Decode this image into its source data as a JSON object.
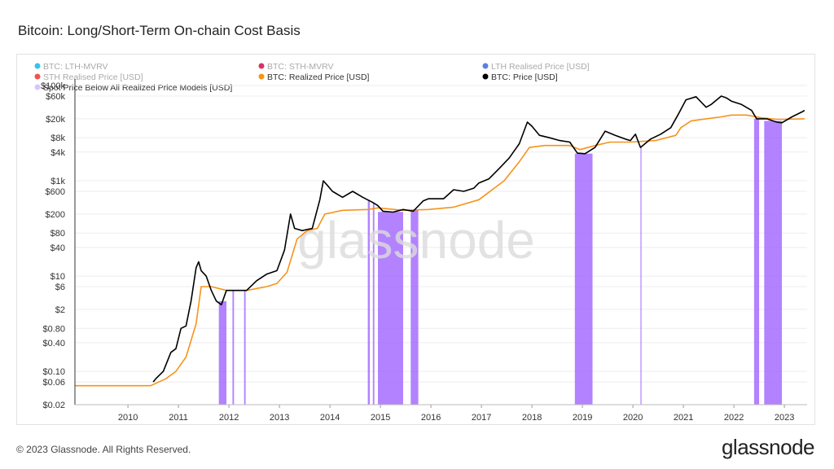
{
  "page": {
    "title": "Bitcoin: Long/Short-Term On-chain Cost Basis"
  },
  "footer": {
    "copyright": "© 2023 Glassnode. All Rights Reserved.",
    "logo": "glassnode"
  },
  "watermark": "glassnode",
  "colors": {
    "price": "#000000",
    "realized": "#f7931a",
    "band": "#a66cff",
    "lth_mvrv": "#33c3f0",
    "sth_mvrv": "#d6336c",
    "lth_realised": "#5b7fe0",
    "sth_realised": "#ef5350"
  },
  "chart_data": {
    "type": "line",
    "title": "Bitcoin: Long/Short-Term On-chain Cost Basis",
    "y_scale": "log",
    "ylim": [
      0.02,
      100000
    ],
    "xlim": [
      "2009-01",
      "2023-06"
    ],
    "y_ticks": [
      "$0.02",
      "$0.06",
      "$0.10",
      "$0.40",
      "$0.80",
      "$2",
      "$6",
      "$10",
      "$40",
      "$80",
      "$200",
      "$600",
      "$1k",
      "$4k",
      "$8k",
      "$20k",
      "$60k",
      "$100k"
    ],
    "x_ticks": [
      "2010",
      "2011",
      "2012",
      "2013",
      "2014",
      "2015",
      "2016",
      "2017",
      "2018",
      "2019",
      "2020",
      "2021",
      "2022",
      "2023"
    ],
    "legend": [
      {
        "label": "BTC: LTH-MVRV",
        "color": "#33c3f0",
        "dimmed": true
      },
      {
        "label": "BTC: STH-MVRV",
        "color": "#d6336c",
        "dimmed": true
      },
      {
        "label": "LTH Realised Price [USD]",
        "color": "#5b7fe0",
        "dimmed": true
      },
      {
        "label": "STH Realised Price [USD]",
        "color": "#ef5350",
        "dimmed": true
      },
      {
        "label": "BTC: Realized Price [USD]",
        "color": "#f7931a",
        "dimmed": false
      },
      {
        "label": "BTC: Price [USD]",
        "color": "#000000",
        "dimmed": false
      },
      {
        "label": "Spot Price Below All Realized Price Models [USD]",
        "color": "#d9c4ff",
        "dimmed": false
      }
    ],
    "series": [
      {
        "name": "BTC: Price [USD]",
        "x": [
          2010.55,
          2010.6,
          2010.75,
          2010.9,
          2011.0,
          2011.1,
          2011.2,
          2011.3,
          2011.4,
          2011.45,
          2011.5,
          2011.6,
          2011.7,
          2011.8,
          2011.9,
          2012.0,
          2012.2,
          2012.4,
          2012.6,
          2012.8,
          2013.0,
          2013.15,
          2013.27,
          2013.35,
          2013.5,
          2013.7,
          2013.85,
          2013.92,
          2014.0,
          2014.1,
          2014.3,
          2014.5,
          2014.7,
          2014.9,
          2015.0,
          2015.1,
          2015.3,
          2015.5,
          2015.7,
          2015.9,
          2016.0,
          2016.3,
          2016.5,
          2016.7,
          2016.9,
          2017.0,
          2017.2,
          2017.4,
          2017.6,
          2017.8,
          2017.96,
          2018.05,
          2018.2,
          2018.4,
          2018.6,
          2018.8,
          2018.95,
          2019.1,
          2019.3,
          2019.5,
          2019.7,
          2019.9,
          2020.0,
          2020.1,
          2020.2,
          2020.4,
          2020.6,
          2020.8,
          2020.95,
          2021.1,
          2021.3,
          2021.5,
          2021.6,
          2021.8,
          2021.9,
          2022.0,
          2022.2,
          2022.4,
          2022.5,
          2022.7,
          2022.9,
          2023.0,
          2023.2,
          2023.4,
          2023.45
        ],
        "y": [
          0.06,
          0.07,
          0.1,
          0.25,
          0.3,
          0.8,
          0.9,
          3,
          15,
          20,
          13,
          10,
          5,
          3,
          2.5,
          5,
          5,
          5,
          8,
          11,
          13,
          35,
          200,
          100,
          90,
          100,
          400,
          1000,
          800,
          600,
          450,
          600,
          450,
          350,
          300,
          230,
          220,
          250,
          230,
          380,
          420,
          420,
          650,
          600,
          700,
          900,
          1100,
          1800,
          3000,
          6000,
          17000,
          14000,
          9000,
          8000,
          7000,
          6500,
          3800,
          3700,
          5000,
          11000,
          9000,
          7500,
          7000,
          9500,
          5000,
          7500,
          9500,
          13000,
          25000,
          50000,
          58000,
          35000,
          40000,
          60000,
          55000,
          47000,
          40000,
          30000,
          20000,
          20000,
          17000,
          16500,
          22000,
          28000,
          30000
        ]
      },
      {
        "name": "BTC: Realized Price [USD]",
        "x": [
          2009.0,
          2010.5,
          2010.8,
          2011.0,
          2011.2,
          2011.4,
          2011.5,
          2011.7,
          2012.0,
          2012.4,
          2012.8,
          2013.0,
          2013.2,
          2013.4,
          2013.6,
          2013.8,
          2013.95,
          2014.3,
          2014.8,
          2015.0,
          2015.5,
          2016.0,
          2016.5,
          2017.0,
          2017.5,
          2017.8,
          2018.0,
          2018.3,
          2018.8,
          2019.0,
          2019.3,
          2019.6,
          2020.0,
          2020.5,
          2020.9,
          2021.0,
          2021.2,
          2021.5,
          2021.8,
          2022.0,
          2022.3,
          2022.6,
          2022.9,
          2023.0,
          2023.45
        ],
        "y": [
          0.05,
          0.05,
          0.07,
          0.1,
          0.2,
          1,
          6,
          6,
          5,
          5,
          6,
          7,
          12,
          60,
          90,
          100,
          200,
          240,
          250,
          270,
          240,
          250,
          280,
          400,
          1000,
          2500,
          5000,
          5500,
          5500,
          4500,
          5500,
          6500,
          6500,
          7000,
          9000,
          13000,
          18000,
          20000,
          22000,
          24000,
          24000,
          21000,
          19500,
          19500,
          20000
        ]
      }
    ],
    "bands": [
      [
        2011.85,
        2012.0
      ],
      [
        2012.12,
        2012.15
      ],
      [
        2012.35,
        2012.38
      ],
      [
        2014.8,
        2014.84
      ],
      [
        2014.9,
        2014.93
      ],
      [
        2015.0,
        2015.5
      ],
      [
        2015.65,
        2015.8
      ],
      [
        2018.9,
        2019.25
      ],
      [
        2020.2,
        2020.22
      ],
      [
        2022.45,
        2022.55
      ],
      [
        2022.65,
        2023.0
      ]
    ]
  }
}
